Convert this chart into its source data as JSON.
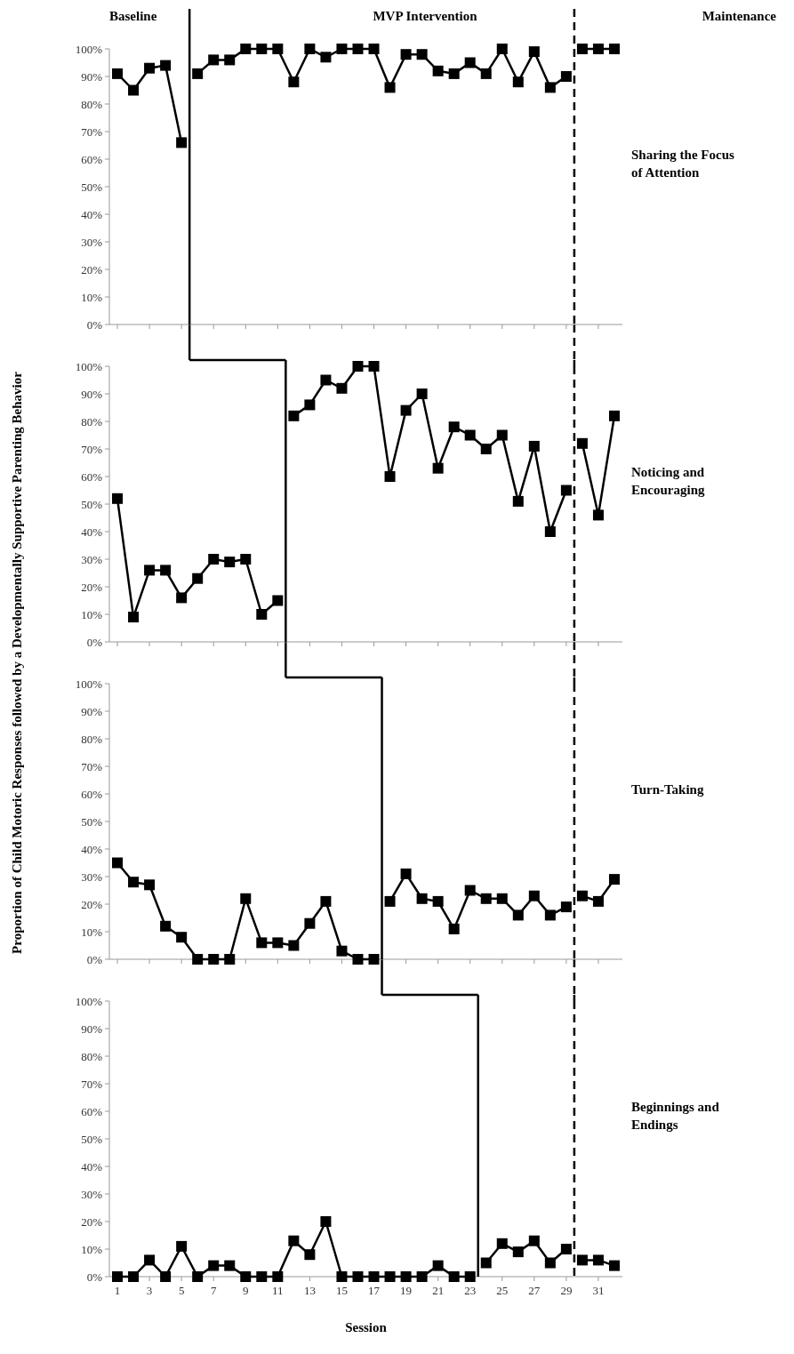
{
  "chart_data": [
    {
      "type": "line",
      "ylabel": "Proportion of Child Motoric Responses followed by a Developmentally Supportive Parenting Behavior",
      "annotations": [
        "Baseline",
        "MVP Intervention",
        "Maintenance",
        "Sharing the Focus of Attention"
      ],
      "marker": "square",
      "line_style": "solid",
      "grid": false,
      "tick_labels": "y",
      "xlim": [
        0.5,
        32.5
      ],
      "xticks": [
        1,
        3,
        5,
        7,
        9,
        11,
        13,
        15,
        17,
        19,
        21,
        23,
        25,
        27,
        29,
        31
      ],
      "ylim": [
        0,
        100
      ],
      "yticks": [
        {
          "value": 0,
          "label": "0%"
        },
        {
          "value": 10,
          "label": "10%"
        },
        {
          "value": 20,
          "label": "20%"
        },
        {
          "value": 30,
          "label": "30%"
        },
        {
          "value": 40,
          "label": "40%"
        },
        {
          "value": 50,
          "label": "50%"
        },
        {
          "value": 60,
          "label": "60%"
        },
        {
          "value": 70,
          "label": "70%"
        },
        {
          "value": 80,
          "label": "80%"
        },
        {
          "value": 90,
          "label": "90%"
        },
        {
          "value": 100,
          "label": "100%"
        }
      ],
      "ref_lines": [
        {
          "axis": "x",
          "value": 5.5,
          "color": "#000000",
          "line_style": "solid"
        },
        {
          "axis": "x",
          "value": 29.5,
          "color": "#000000",
          "line_style": "dashed"
        }
      ],
      "series": [
        {
          "color": "#000000",
          "x": [
            1,
            2,
            3,
            4,
            5
          ],
          "values": [
            91,
            85,
            93,
            94,
            66
          ]
        },
        {
          "color": "#000000",
          "x": [
            6,
            7,
            8,
            9,
            10,
            11,
            12,
            13,
            14,
            15,
            16,
            17,
            18,
            19,
            20,
            21,
            22,
            23,
            24,
            25,
            26,
            27,
            28,
            29
          ],
          "values": [
            91,
            96,
            96,
            100,
            100,
            100,
            88,
            100,
            97,
            100,
            100,
            100,
            86,
            98,
            98,
            92,
            91,
            95,
            91,
            100,
            88,
            99,
            86,
            90
          ]
        },
        {
          "color": "#000000",
          "x": [
            30,
            31,
            32
          ],
          "values": [
            100,
            100,
            100
          ]
        }
      ]
    },
    {
      "type": "line",
      "annotations": [
        "Noticing and Encouraging"
      ],
      "marker": "square",
      "line_style": "solid",
      "grid": false,
      "tick_labels": "y",
      "xlim": [
        0.5,
        32.5
      ],
      "xticks": [
        1,
        3,
        5,
        7,
        9,
        11,
        13,
        15,
        17,
        19,
        21,
        23,
        25,
        27,
        29,
        31
      ],
      "ylim": [
        0,
        100
      ],
      "yticks": [
        {
          "value": 0,
          "label": "0%"
        },
        {
          "value": 10,
          "label": "10%"
        },
        {
          "value": 20,
          "label": "20%"
        },
        {
          "value": 30,
          "label": "30%"
        },
        {
          "value": 40,
          "label": "40%"
        },
        {
          "value": 50,
          "label": "50%"
        },
        {
          "value": 60,
          "label": "60%"
        },
        {
          "value": 70,
          "label": "70%"
        },
        {
          "value": 80,
          "label": "80%"
        },
        {
          "value": 90,
          "label": "90%"
        },
        {
          "value": 100,
          "label": "100%"
        }
      ],
      "ref_lines": [
        {
          "axis": "x",
          "value": 11.5,
          "color": "#000000",
          "line_style": "solid"
        },
        {
          "axis": "x",
          "value": 29.5,
          "color": "#000000",
          "line_style": "dashed"
        }
      ],
      "series": [
        {
          "color": "#000000",
          "x": [
            1,
            2,
            3,
            4,
            5,
            6,
            7,
            8,
            9,
            10,
            11
          ],
          "values": [
            52,
            9,
            26,
            26,
            16,
            23,
            30,
            29,
            30,
            10,
            15
          ]
        },
        {
          "color": "#000000",
          "x": [
            12,
            13,
            14,
            15,
            16,
            17,
            18,
            19,
            20,
            21,
            22,
            23,
            24,
            25,
            26,
            27,
            28,
            29
          ],
          "values": [
            82,
            86,
            95,
            92,
            100,
            100,
            60,
            84,
            90,
            63,
            78,
            75,
            70,
            75,
            51,
            71,
            40,
            55
          ]
        },
        {
          "color": "#000000",
          "x": [
            30,
            31,
            32
          ],
          "values": [
            72,
            46,
            82
          ]
        }
      ]
    },
    {
      "type": "line",
      "annotations": [
        "Turn-Taking"
      ],
      "marker": "square",
      "line_style": "solid",
      "grid": false,
      "tick_labels": "y",
      "xlim": [
        0.5,
        32.5
      ],
      "xticks": [
        1,
        3,
        5,
        7,
        9,
        11,
        13,
        15,
        17,
        19,
        21,
        23,
        25,
        27,
        29,
        31
      ],
      "ylim": [
        0,
        100
      ],
      "yticks": [
        {
          "value": 0,
          "label": "0%"
        },
        {
          "value": 10,
          "label": "10%"
        },
        {
          "value": 20,
          "label": "20%"
        },
        {
          "value": 30,
          "label": "30%"
        },
        {
          "value": 40,
          "label": "40%"
        },
        {
          "value": 50,
          "label": "50%"
        },
        {
          "value": 60,
          "label": "60%"
        },
        {
          "value": 70,
          "label": "70%"
        },
        {
          "value": 80,
          "label": "80%"
        },
        {
          "value": 90,
          "label": "90%"
        },
        {
          "value": 100,
          "label": "100%"
        }
      ],
      "ref_lines": [
        {
          "axis": "x",
          "value": 17.5,
          "color": "#000000",
          "line_style": "solid"
        },
        {
          "axis": "x",
          "value": 29.5,
          "color": "#000000",
          "line_style": "dashed"
        }
      ],
      "series": [
        {
          "color": "#000000",
          "x": [
            1,
            2,
            3,
            4,
            5,
            6,
            7,
            8,
            9,
            10,
            11,
            12,
            13,
            14,
            15,
            16,
            17
          ],
          "values": [
            35,
            28,
            27,
            12,
            8,
            0,
            0,
            0,
            22,
            6,
            6,
            5,
            13,
            21,
            3,
            0,
            0
          ]
        },
        {
          "color": "#000000",
          "x": [
            18,
            19,
            20,
            21,
            22,
            23,
            24,
            25,
            26,
            27,
            28,
            29
          ],
          "values": [
            21,
            31,
            22,
            21,
            11,
            25,
            22,
            22,
            16,
            23,
            16,
            19
          ]
        },
        {
          "color": "#000000",
          "x": [
            30,
            31,
            32
          ],
          "values": [
            23,
            21,
            29
          ]
        }
      ]
    },
    {
      "type": "line",
      "annotations": [
        "Beginnings and Endings"
      ],
      "xlabel": "Session",
      "marker": "square",
      "line_style": "solid",
      "grid": false,
      "xlim": [
        0.5,
        32.5
      ],
      "xticks": [
        1,
        3,
        5,
        7,
        9,
        11,
        13,
        15,
        17,
        19,
        21,
        23,
        25,
        27,
        29,
        31
      ],
      "ylim": [
        0,
        100
      ],
      "yticks": [
        {
          "value": 0,
          "label": "0%"
        },
        {
          "value": 10,
          "label": "10%"
        },
        {
          "value": 20,
          "label": "20%"
        },
        {
          "value": 30,
          "label": "30%"
        },
        {
          "value": 40,
          "label": "40%"
        },
        {
          "value": 50,
          "label": "50%"
        },
        {
          "value": 60,
          "label": "60%"
        },
        {
          "value": 70,
          "label": "70%"
        },
        {
          "value": 80,
          "label": "80%"
        },
        {
          "value": 90,
          "label": "90%"
        },
        {
          "value": 100,
          "label": "100%"
        }
      ],
      "ref_lines": [
        {
          "axis": "x",
          "value": 23.5,
          "color": "#000000",
          "line_style": "solid"
        },
        {
          "axis": "x",
          "value": 29.5,
          "color": "#000000",
          "line_style": "dashed"
        }
      ],
      "series": [
        {
          "color": "#000000",
          "x": [
            1,
            2,
            3,
            4,
            5,
            6,
            7,
            8,
            9,
            10,
            11,
            12,
            13,
            14,
            15,
            16,
            17,
            18,
            19,
            20,
            21,
            22,
            23
          ],
          "values": [
            0,
            0,
            6,
            0,
            11,
            0,
            4,
            4,
            0,
            0,
            0,
            13,
            8,
            20,
            0,
            0,
            0,
            0,
            0,
            0,
            4,
            0,
            0
          ]
        },
        {
          "color": "#000000",
          "x": [
            24,
            25,
            26,
            27,
            28,
            29
          ],
          "values": [
            5,
            12,
            9,
            13,
            5,
            10
          ]
        },
        {
          "color": "#000000",
          "x": [
            30,
            31,
            32
          ],
          "values": [
            6,
            6,
            4
          ]
        }
      ]
    }
  ]
}
